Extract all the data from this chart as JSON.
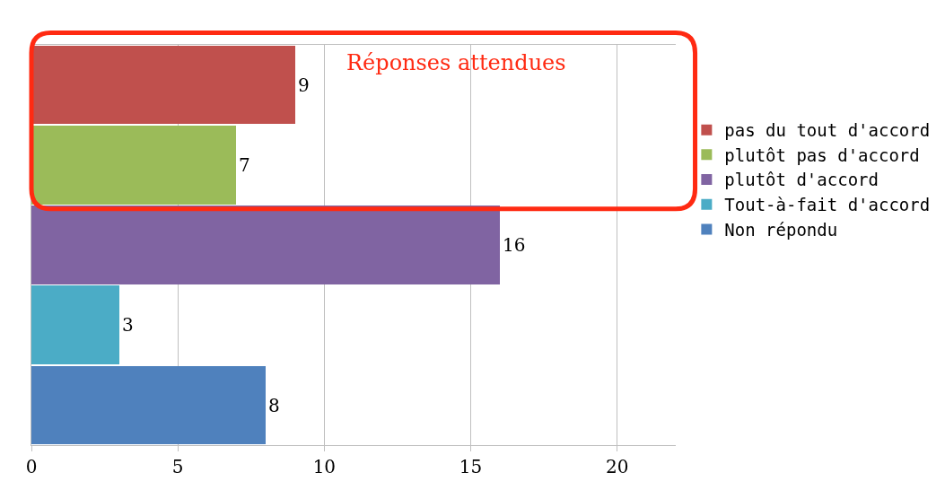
{
  "chart_data": {
    "type": "bar",
    "orientation": "horizontal",
    "categories": [
      null,
      null,
      null,
      null,
      null
    ],
    "series": [
      {
        "name": "pas du tout d'accord",
        "color": "#c0504d",
        "values": [
          9,
          null,
          null,
          null,
          null
        ]
      },
      {
        "name": "plutôt pas d'accord",
        "color": "#9bbb59",
        "values": [
          null,
          7,
          null,
          null,
          null
        ]
      },
      {
        "name": "plutôt d'accord",
        "color": "#8064a2",
        "values": [
          null,
          null,
          16,
          null,
          null
        ]
      },
      {
        "name": "Tout-à-fait d'accord",
        "color": "#4bacc6",
        "values": [
          null,
          null,
          null,
          3,
          null
        ]
      },
      {
        "name": "Non répondu",
        "color": "#4f81bd",
        "values": [
          null,
          null,
          null,
          null,
          8
        ]
      }
    ],
    "xlim": [
      0,
      22
    ],
    "xticks": [
      0,
      5,
      10,
      15,
      20
    ],
    "grid": "x",
    "legend": "right",
    "data_labels": true,
    "annotations": [
      "Réponses attendues"
    ]
  }
}
